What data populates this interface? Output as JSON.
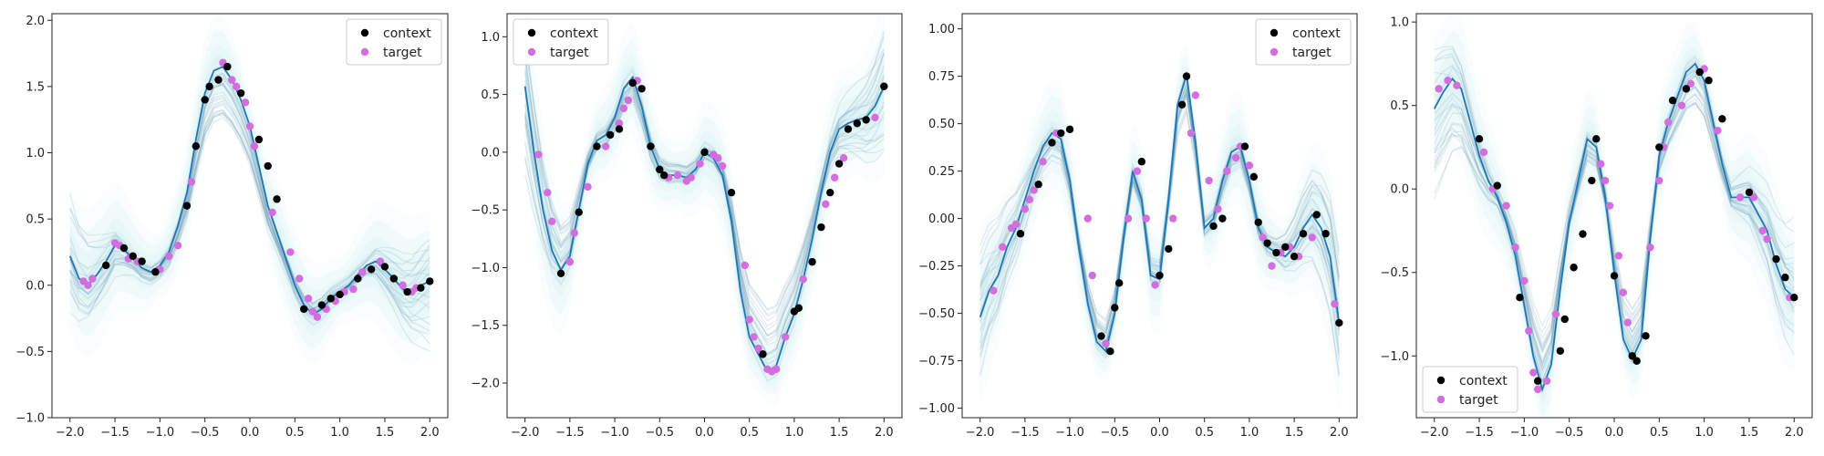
{
  "figure": {
    "layout": "1 row x 4 panels"
  },
  "colors": {
    "context": "#000000",
    "target": "#d36ee0",
    "mean_line": "#1f77b4",
    "samples": "#5b8fae",
    "band": "#aee3ea"
  },
  "chart_data": [
    {
      "type": "line",
      "title": "",
      "xlabel": "",
      "ylabel": "",
      "xlim": [
        -2.2,
        2.2
      ],
      "ylim": [
        -1.0,
        2.05
      ],
      "xticks": [
        -2.0,
        -1.5,
        -1.0,
        -0.5,
        0.0,
        0.5,
        1.0,
        1.5,
        2.0
      ],
      "xtick_labels": [
        "−2.0",
        "−1.5",
        "−1.0",
        "−0.5",
        "0.0",
        "0.5",
        "1.0",
        "1.5",
        "2.0"
      ],
      "yticks": [
        -1.0,
        -0.5,
        0.0,
        0.5,
        1.0,
        1.5,
        2.0
      ],
      "ytick_labels": [
        "−1.0",
        "−0.5",
        "0.0",
        "0.5",
        "1.0",
        "1.5",
        "2.0"
      ],
      "legend": {
        "position": "top-right",
        "entries": [
          "context",
          "target"
        ]
      },
      "grid": false,
      "function": {
        "x": [
          -2.0,
          -1.9,
          -1.8,
          -1.7,
          -1.6,
          -1.5,
          -1.4,
          -1.3,
          -1.2,
          -1.1,
          -1.0,
          -0.9,
          -0.8,
          -0.7,
          -0.6,
          -0.5,
          -0.4,
          -0.3,
          -0.2,
          -0.1,
          0.0,
          0.1,
          0.2,
          0.3,
          0.4,
          0.5,
          0.6,
          0.7,
          0.8,
          0.9,
          1.0,
          1.1,
          1.2,
          1.3,
          1.4,
          1.5,
          1.6,
          1.7,
          1.8,
          1.9,
          2.0
        ],
        "y": [
          0.22,
          0.05,
          0.0,
          0.08,
          0.18,
          0.3,
          0.27,
          0.2,
          0.13,
          0.1,
          0.15,
          0.25,
          0.45,
          0.7,
          1.1,
          1.45,
          1.62,
          1.65,
          1.55,
          1.4,
          1.2,
          0.9,
          0.6,
          0.4,
          0.2,
          0.0,
          -0.15,
          -0.22,
          -0.18,
          -0.1,
          -0.05,
          0.0,
          0.08,
          0.15,
          0.18,
          0.12,
          0.05,
          -0.03,
          -0.05,
          0.0,
          0.03
        ]
      },
      "context": {
        "x": [
          -1.6,
          -1.4,
          -1.3,
          -1.2,
          -1.05,
          -0.7,
          -0.6,
          -0.5,
          -0.45,
          -0.35,
          -0.25,
          -0.1,
          0.1,
          0.2,
          0.3,
          0.6,
          0.8,
          0.9,
          1.0,
          1.2,
          1.35,
          1.5,
          1.6,
          1.75,
          1.9,
          2.0
        ],
        "y": [
          0.15,
          0.28,
          0.22,
          0.18,
          0.1,
          0.6,
          1.05,
          1.4,
          1.5,
          1.55,
          1.65,
          1.45,
          1.1,
          0.9,
          0.65,
          -0.18,
          -0.15,
          -0.1,
          -0.07,
          0.05,
          0.12,
          0.14,
          0.05,
          -0.05,
          -0.02,
          0.03
        ]
      },
      "target": {
        "x": [
          -1.85,
          -1.8,
          -1.75,
          -1.5,
          -1.45,
          -1.35,
          -1.25,
          -1.0,
          -0.9,
          -0.8,
          -0.65,
          -0.3,
          -0.2,
          -0.15,
          -0.05,
          0.0,
          0.05,
          0.25,
          0.45,
          0.55,
          0.65,
          0.7,
          0.75,
          0.85,
          0.95,
          1.05,
          1.15,
          1.25,
          1.45,
          1.7,
          1.8,
          1.85
        ],
        "y": [
          0.03,
          0.0,
          0.05,
          0.32,
          0.3,
          0.2,
          0.18,
          0.12,
          0.22,
          0.3,
          0.78,
          1.68,
          1.55,
          1.5,
          1.38,
          1.2,
          1.05,
          0.55,
          0.25,
          0.05,
          -0.1,
          -0.2,
          -0.24,
          -0.18,
          -0.12,
          -0.05,
          -0.03,
          0.1,
          0.18,
          0.0,
          -0.05,
          -0.02
        ]
      }
    },
    {
      "type": "line",
      "title": "",
      "xlabel": "",
      "ylabel": "",
      "xlim": [
        -2.2,
        2.2
      ],
      "ylim": [
        -2.3,
        1.2
      ],
      "xticks": [
        -2.0,
        -1.5,
        -1.0,
        -0.5,
        0.0,
        0.5,
        1.0,
        1.5,
        2.0
      ],
      "xtick_labels": [
        "−2.0",
        "−1.5",
        "−1.0",
        "−0.5",
        "0.0",
        "0.5",
        "1.0",
        "1.5",
        "2.0"
      ],
      "yticks": [
        -2.0,
        -1.5,
        -1.0,
        -0.5,
        0.0,
        0.5,
        1.0
      ],
      "ytick_labels": [
        "−2.0",
        "−1.5",
        "−1.0",
        "−0.5",
        "0.0",
        "0.5",
        "1.0"
      ],
      "legend": {
        "position": "top-left",
        "entries": [
          "context",
          "target"
        ]
      },
      "grid": false,
      "function": {
        "x": [
          -2.0,
          -1.9,
          -1.8,
          -1.7,
          -1.6,
          -1.5,
          -1.4,
          -1.3,
          -1.2,
          -1.1,
          -1.0,
          -0.9,
          -0.8,
          -0.7,
          -0.6,
          -0.5,
          -0.4,
          -0.3,
          -0.2,
          -0.1,
          0.0,
          0.1,
          0.2,
          0.3,
          0.4,
          0.5,
          0.6,
          0.7,
          0.8,
          0.9,
          1.0,
          1.1,
          1.2,
          1.3,
          1.4,
          1.5,
          1.6,
          1.7,
          1.8,
          1.9,
          2.0
        ],
        "y": [
          0.57,
          0.0,
          -0.5,
          -0.85,
          -1.02,
          -0.9,
          -0.5,
          -0.1,
          0.1,
          0.15,
          0.3,
          0.55,
          0.65,
          0.4,
          0.05,
          -0.15,
          -0.2,
          -0.2,
          -0.22,
          -0.15,
          0.0,
          -0.05,
          -0.2,
          -0.6,
          -1.2,
          -1.6,
          -1.75,
          -1.9,
          -1.85,
          -1.6,
          -1.4,
          -1.1,
          -0.75,
          -0.35,
          0.0,
          0.2,
          0.25,
          0.28,
          0.3,
          0.4,
          0.57
        ]
      },
      "context": {
        "x": [
          -1.6,
          -1.4,
          -1.2,
          -1.05,
          -0.95,
          -0.8,
          -0.7,
          -0.6,
          -0.5,
          -0.45,
          0.0,
          0.3,
          0.65,
          1.0,
          1.05,
          1.2,
          1.3,
          1.4,
          1.5,
          1.6,
          1.7,
          1.8,
          2.0
        ],
        "y": [
          -1.05,
          -0.52,
          0.05,
          0.15,
          0.2,
          0.6,
          0.55,
          0.05,
          -0.15,
          -0.2,
          0.0,
          -0.35,
          -1.75,
          -1.38,
          -1.35,
          -0.95,
          -0.65,
          -0.35,
          -0.1,
          0.2,
          0.25,
          0.28,
          0.57
        ]
      },
      "target": {
        "x": [
          -1.85,
          -1.75,
          -1.7,
          -1.5,
          -1.45,
          -1.3,
          -1.1,
          -0.95,
          -0.9,
          -0.85,
          -0.75,
          -0.4,
          -0.3,
          -0.2,
          -0.15,
          -0.05,
          0.1,
          0.15,
          0.2,
          0.45,
          0.5,
          0.55,
          0.6,
          0.7,
          0.75,
          0.8,
          0.9,
          1.1,
          1.35,
          1.45,
          1.55,
          1.9
        ],
        "y": [
          -0.02,
          -0.35,
          -0.6,
          -0.95,
          -0.7,
          -0.3,
          0.05,
          0.25,
          0.38,
          0.45,
          0.62,
          -0.22,
          -0.2,
          -0.25,
          -0.22,
          -0.1,
          -0.02,
          -0.05,
          -0.12,
          -0.98,
          -1.45,
          -1.6,
          -1.7,
          -1.88,
          -1.9,
          -1.88,
          -1.6,
          -1.1,
          -0.45,
          -0.22,
          -0.05,
          0.3
        ]
      }
    },
    {
      "type": "line",
      "title": "",
      "xlabel": "",
      "ylabel": "",
      "xlim": [
        -2.2,
        2.2
      ],
      "ylim": [
        -1.05,
        1.08
      ],
      "xticks": [
        -2.0,
        -1.5,
        -1.0,
        -0.5,
        0.0,
        0.5,
        1.0,
        1.5,
        2.0
      ],
      "xtick_labels": [
        "−2.0",
        "−1.5",
        "−1.0",
        "−0.5",
        "0.0",
        "0.5",
        "1.0",
        "1.5",
        "2.0"
      ],
      "yticks": [
        -1.0,
        -0.75,
        -0.5,
        -0.25,
        0.0,
        0.25,
        0.5,
        0.75,
        1.0
      ],
      "ytick_labels": [
        "−1.00",
        "−0.75",
        "−0.50",
        "−0.25",
        "0.00",
        "0.25",
        "0.50",
        "0.75",
        "1.00"
      ],
      "legend": {
        "position": "top-right",
        "entries": [
          "context",
          "target"
        ]
      },
      "grid": false,
      "function": {
        "x": [
          -2.0,
          -1.9,
          -1.8,
          -1.7,
          -1.6,
          -1.5,
          -1.4,
          -1.3,
          -1.2,
          -1.1,
          -1.0,
          -0.9,
          -0.8,
          -0.7,
          -0.6,
          -0.5,
          -0.4,
          -0.3,
          -0.2,
          -0.1,
          0.0,
          0.1,
          0.2,
          0.3,
          0.4,
          0.5,
          0.6,
          0.7,
          0.8,
          0.9,
          1.0,
          1.1,
          1.2,
          1.3,
          1.4,
          1.5,
          1.6,
          1.7,
          1.8,
          1.9,
          2.0
        ],
        "y": [
          -0.52,
          -0.38,
          -0.3,
          -0.15,
          -0.05,
          0.1,
          0.25,
          0.38,
          0.45,
          0.42,
          0.2,
          -0.15,
          -0.45,
          -0.65,
          -0.7,
          -0.5,
          -0.1,
          0.25,
          0.1,
          -0.3,
          -0.32,
          0.1,
          0.6,
          0.76,
          0.4,
          -0.05,
          0.0,
          0.2,
          0.35,
          0.38,
          0.2,
          -0.05,
          -0.15,
          -0.18,
          -0.2,
          -0.15,
          -0.05,
          0.02,
          -0.05,
          -0.2,
          -0.55
        ]
      },
      "context": {
        "x": [
          -1.55,
          -1.35,
          -1.2,
          -1.1,
          -1.0,
          -0.65,
          -0.55,
          -0.5,
          -0.45,
          -0.2,
          0.0,
          0.1,
          0.25,
          0.3,
          0.6,
          0.7,
          0.95,
          1.05,
          1.1,
          1.2,
          1.3,
          1.4,
          1.5,
          1.6,
          1.75,
          1.85,
          2.0
        ],
        "y": [
          -0.08,
          0.18,
          0.4,
          0.45,
          0.47,
          -0.62,
          -0.7,
          -0.47,
          -0.34,
          0.3,
          -0.3,
          -0.16,
          0.6,
          0.75,
          -0.04,
          0.0,
          0.38,
          0.22,
          -0.02,
          -0.13,
          -0.18,
          -0.15,
          -0.2,
          -0.08,
          0.02,
          -0.08,
          -0.55
        ]
      },
      "target": {
        "x": [
          -1.85,
          -1.75,
          -1.65,
          -1.6,
          -1.5,
          -1.45,
          -1.4,
          -1.3,
          -1.15,
          -0.8,
          -0.75,
          -0.6,
          -0.35,
          -0.25,
          -0.15,
          -0.05,
          0.15,
          0.35,
          0.4,
          0.55,
          0.65,
          0.75,
          0.85,
          0.9,
          1.0,
          1.15,
          1.25,
          1.35,
          1.45,
          1.55,
          1.7,
          1.95
        ],
        "y": [
          -0.38,
          -0.15,
          -0.05,
          -0.03,
          0.05,
          0.1,
          0.15,
          0.3,
          0.45,
          0.0,
          -0.3,
          -0.66,
          0.0,
          0.25,
          0.0,
          -0.35,
          0.0,
          0.45,
          0.65,
          0.2,
          0.05,
          0.25,
          0.32,
          0.38,
          0.28,
          -0.1,
          -0.25,
          -0.18,
          -0.15,
          -0.2,
          -0.1,
          -0.45
        ]
      }
    },
    {
      "type": "line",
      "title": "",
      "xlabel": "",
      "ylabel": "",
      "xlim": [
        -2.2,
        2.2
      ],
      "ylim": [
        -1.37,
        1.05
      ],
      "xticks": [
        -2.0,
        -1.5,
        -1.0,
        -0.5,
        0.0,
        0.5,
        1.0,
        1.5,
        2.0
      ],
      "xtick_labels": [
        "−2.0",
        "−1.5",
        "−1.0",
        "−0.5",
        "0.0",
        "0.5",
        "1.0",
        "1.5",
        "2.0"
      ],
      "yticks": [
        -1.0,
        -0.5,
        0.0,
        0.5,
        1.0
      ],
      "ytick_labels": [
        "−1.0",
        "−0.5",
        "0.0",
        "0.5",
        "1.0"
      ],
      "legend": {
        "position": "bottom-left",
        "entries": [
          "context",
          "target"
        ]
      },
      "grid": false,
      "function": {
        "x": [
          -2.0,
          -1.9,
          -1.8,
          -1.7,
          -1.6,
          -1.5,
          -1.4,
          -1.3,
          -1.2,
          -1.1,
          -1.0,
          -0.9,
          -0.8,
          -0.7,
          -0.6,
          -0.5,
          -0.4,
          -0.3,
          -0.2,
          -0.1,
          0.0,
          0.1,
          0.2,
          0.3,
          0.4,
          0.5,
          0.6,
          0.7,
          0.8,
          0.9,
          1.0,
          1.1,
          1.2,
          1.3,
          1.4,
          1.5,
          1.6,
          1.7,
          1.8,
          1.9,
          2.0
        ],
        "y": [
          0.48,
          0.58,
          0.66,
          0.6,
          0.4,
          0.2,
          0.05,
          -0.05,
          -0.2,
          -0.4,
          -0.7,
          -1.0,
          -1.2,
          -1.05,
          -0.6,
          -0.2,
          0.05,
          0.3,
          0.25,
          -0.05,
          -0.5,
          -0.9,
          -1.02,
          -0.9,
          -0.3,
          0.2,
          0.4,
          0.55,
          0.7,
          0.75,
          0.65,
          0.4,
          0.15,
          -0.05,
          -0.05,
          -0.05,
          -0.15,
          -0.25,
          -0.45,
          -0.6,
          -0.65
        ]
      },
      "context": {
        "x": [
          -1.5,
          -1.3,
          -1.05,
          -0.85,
          -0.6,
          -0.55,
          -0.45,
          -0.35,
          -0.25,
          -0.2,
          0.0,
          0.2,
          0.25,
          0.35,
          0.5,
          0.65,
          0.8,
          0.95,
          1.05,
          1.2,
          1.5,
          1.8,
          1.9,
          2.0
        ],
        "y": [
          0.3,
          0.02,
          -0.65,
          -1.15,
          -0.97,
          -0.78,
          -0.47,
          -0.27,
          0.05,
          0.3,
          -0.52,
          -1.0,
          -1.03,
          -0.88,
          0.25,
          0.53,
          0.6,
          0.7,
          0.65,
          0.42,
          -0.02,
          -0.42,
          -0.53,
          -0.65
        ]
      },
      "target": {
        "x": [
          -1.95,
          -1.85,
          -1.75,
          -1.45,
          -1.35,
          -1.2,
          -1.1,
          -1.0,
          -0.95,
          -0.9,
          -0.85,
          -0.75,
          -0.65,
          -0.15,
          -0.1,
          -0.05,
          0.05,
          0.1,
          0.15,
          0.4,
          0.5,
          0.55,
          0.6,
          0.75,
          0.85,
          1.0,
          1.15,
          1.4,
          1.55,
          1.65,
          1.7,
          1.95
        ],
        "y": [
          0.6,
          0.65,
          0.62,
          0.22,
          0.0,
          -0.1,
          -0.35,
          -0.55,
          -0.85,
          -1.1,
          -1.2,
          -1.15,
          -0.75,
          0.15,
          0.05,
          -0.1,
          -0.4,
          -0.62,
          -0.8,
          -0.35,
          0.05,
          0.25,
          0.4,
          0.5,
          0.63,
          0.72,
          0.35,
          -0.05,
          -0.05,
          -0.25,
          -0.3,
          -0.65
        ]
      }
    }
  ]
}
